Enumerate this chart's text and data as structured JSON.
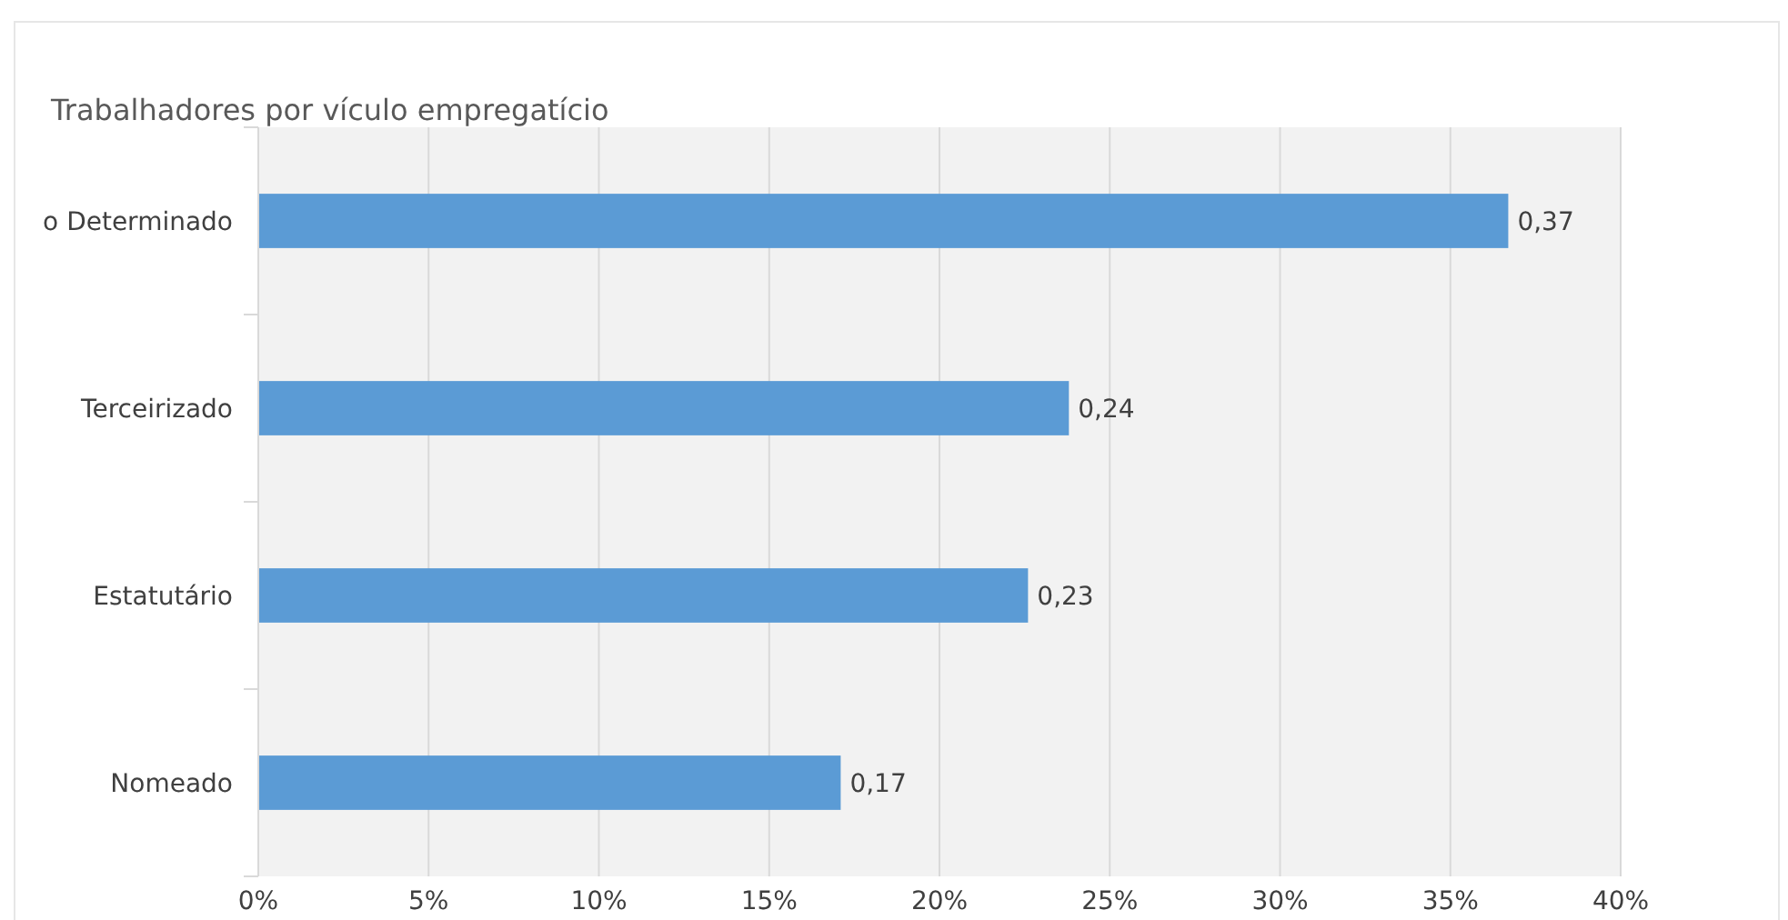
{
  "chart_data": {
    "type": "bar",
    "orientation": "horizontal",
    "title": "Trabalhadores por vículo empregatício",
    "categories": [
      "o Determinado",
      "Terceirizado",
      "Estatutário",
      "Nomeado"
    ],
    "values": [
      0.367,
      0.238,
      0.226,
      0.171
    ],
    "value_labels": [
      "0,37",
      "0,24",
      "0,23",
      "0,17"
    ],
    "color": "#5b9bd5",
    "xlim": [
      0,
      0.4
    ],
    "xticks": [
      {
        "value": 0,
        "label": "0%"
      },
      {
        "value": 0.05,
        "label": "5%"
      },
      {
        "value": 0.1,
        "label": "10%"
      },
      {
        "value": 0.15,
        "label": "15%"
      },
      {
        "value": 0.2,
        "label": "20%"
      },
      {
        "value": 0.25,
        "label": "25%"
      },
      {
        "value": 0.3,
        "label": "30%"
      },
      {
        "value": 0.35,
        "label": "35%"
      },
      {
        "value": 0.4,
        "label": "40%"
      }
    ],
    "grid": "x"
  }
}
